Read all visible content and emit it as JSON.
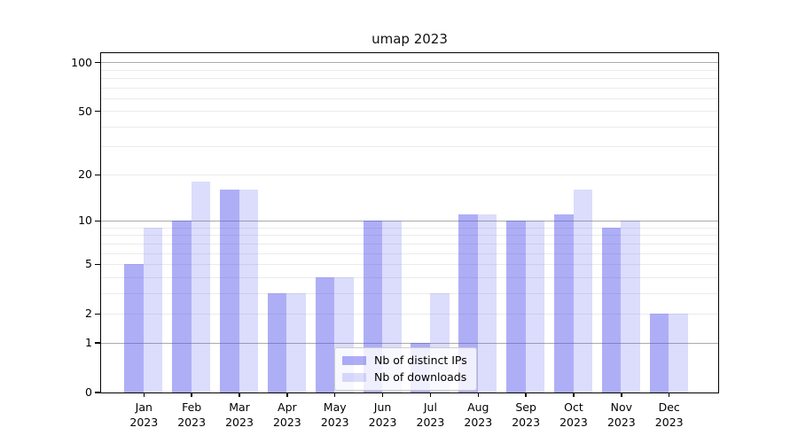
{
  "title": "umap 2023",
  "chart_data": {
    "type": "bar",
    "title": "umap 2023",
    "y_scale": "symlog-log1p",
    "categories": [
      "Jan",
      "Feb",
      "Mar",
      "Apr",
      "May",
      "Jun",
      "Jul",
      "Aug",
      "Sep",
      "Oct",
      "Nov",
      "Dec"
    ],
    "x_tick_second_line": "2023",
    "series": [
      {
        "name": "Nb of distinct IPs",
        "color": "#5252ee",
        "alpha": 0.47,
        "values": [
          5,
          10,
          16,
          3,
          4,
          10,
          1,
          11,
          10,
          11,
          9,
          2
        ]
      },
      {
        "name": "Nb of downloads",
        "color": "#5252ee",
        "alpha": 0.2,
        "values": [
          9,
          18,
          16,
          3,
          4,
          10,
          3,
          11,
          10,
          16,
          10,
          2
        ]
      }
    ],
    "y_ticks": [
      0,
      1,
      2,
      5,
      10,
      20,
      50,
      100
    ],
    "y_major_gridlines": [
      1,
      10,
      100
    ],
    "y_minor_gridlines": [
      2,
      3,
      4,
      5,
      6,
      7,
      8,
      9,
      20,
      30,
      40,
      50,
      60,
      70,
      80,
      90
    ],
    "ylim": [
      0,
      117
    ],
    "grid": "horizontal",
    "legend_position": "inside-bottom-center",
    "colors": {
      "spine": "#000000",
      "grid_major": "#ababab",
      "grid_minor": "#ebebeb",
      "legend_border": "#cccccc"
    }
  }
}
